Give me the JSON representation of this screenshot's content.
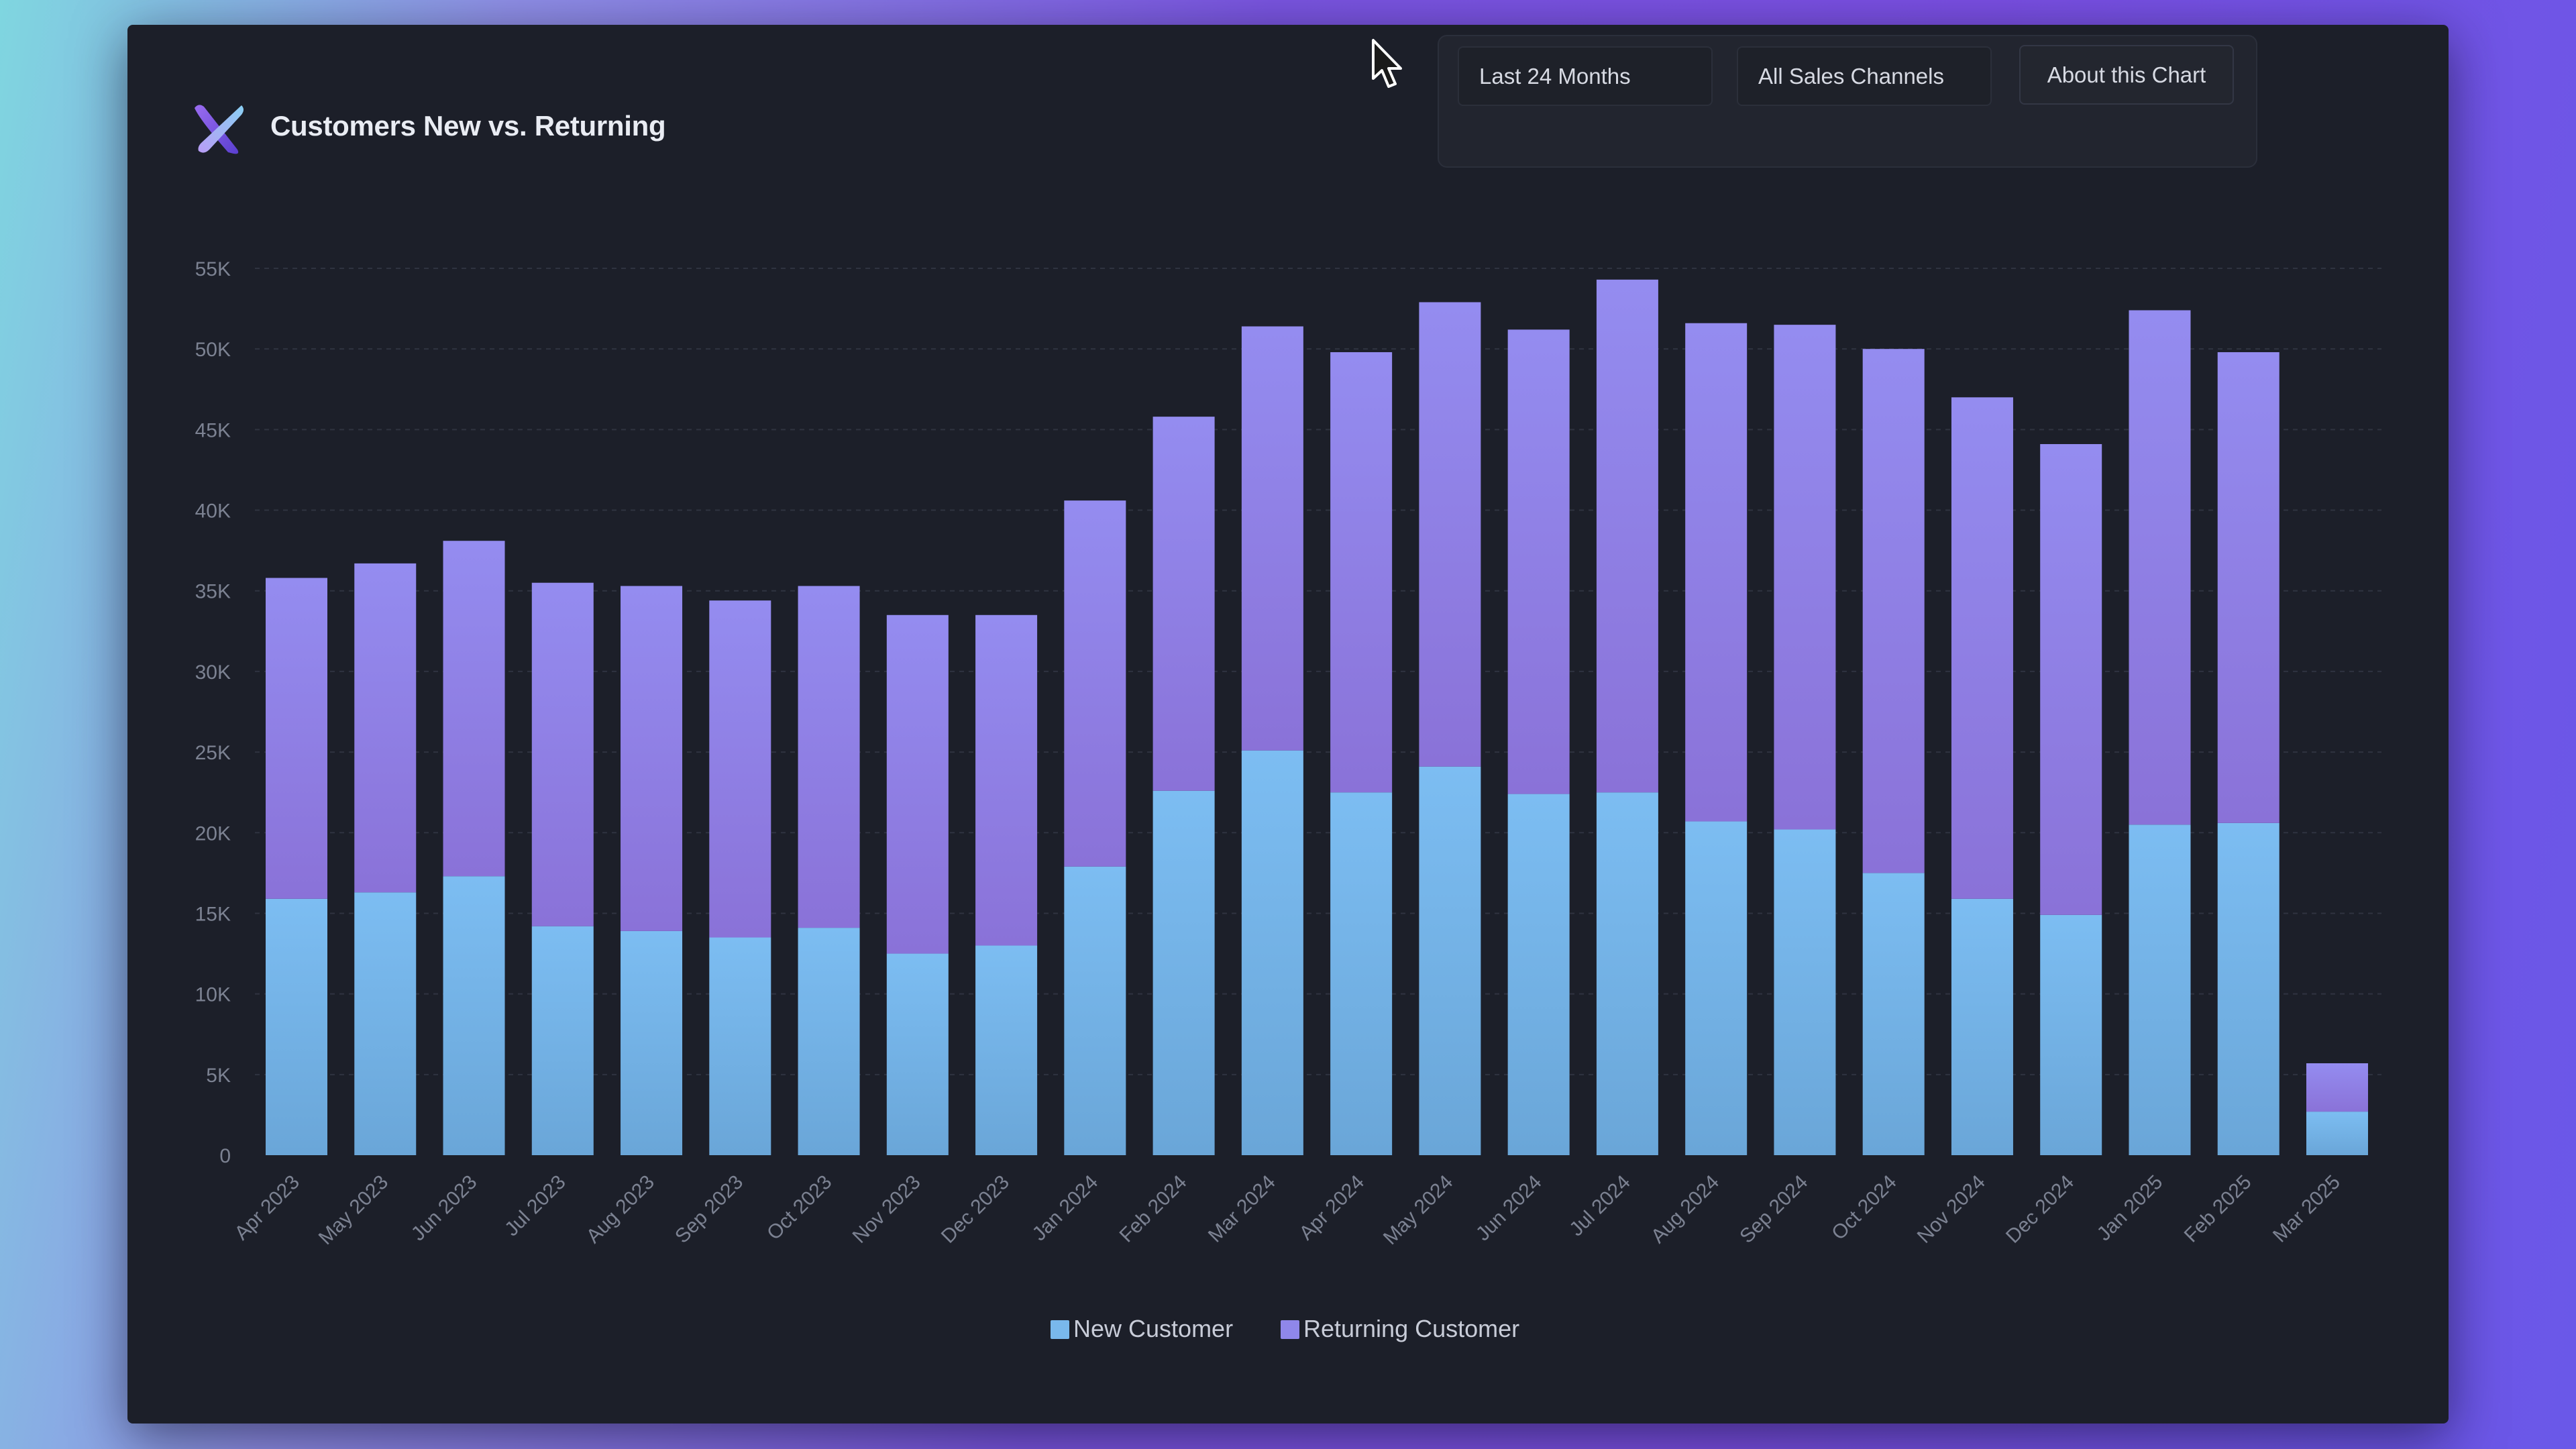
{
  "header": {
    "title": "Customers New vs. Returning",
    "logo_icon": "x-logo-icon"
  },
  "controls": {
    "range_label": "Last 24 Months",
    "channel_label": "All Sales Channels",
    "about_label": "About this Chart"
  },
  "colors": {
    "window_bg": "#1c1f29",
    "new_customer": "#79b8ec",
    "returning_customer": "#8f87ea",
    "grid": "#2f3340",
    "tick_text": "#7c8292"
  },
  "chart_data": {
    "type": "bar",
    "stacked": true,
    "title": "Customers New vs. Returning",
    "xlabel": "",
    "ylabel": "",
    "ylim": [
      0,
      55000
    ],
    "yticks": [
      0,
      5000,
      10000,
      15000,
      20000,
      25000,
      30000,
      35000,
      40000,
      45000,
      50000,
      55000
    ],
    "ytick_labels": [
      "0",
      "5K",
      "10K",
      "15K",
      "20K",
      "25K",
      "30K",
      "35K",
      "40K",
      "45K",
      "50K",
      "55K"
    ],
    "grid": true,
    "legend_position": "bottom",
    "categories": [
      "Apr 2023",
      "May 2023",
      "Jun 2023",
      "Jul 2023",
      "Aug 2023",
      "Sep 2023",
      "Oct 2023",
      "Nov 2023",
      "Dec 2023",
      "Jan 2024",
      "Feb 2024",
      "Mar 2024",
      "Apr 2024",
      "May 2024",
      "Jun 2024",
      "Jul 2024",
      "Aug 2024",
      "Sep 2024",
      "Oct 2024",
      "Nov 2024",
      "Dec 2024",
      "Jan 2025",
      "Feb 2025",
      "Mar 2025"
    ],
    "series": [
      {
        "name": "New Customer",
        "color": "#79b8ec",
        "values": [
          15900,
          16300,
          17300,
          14200,
          13900,
          13500,
          14100,
          12500,
          13000,
          17900,
          22600,
          25100,
          22500,
          24100,
          22400,
          22500,
          20700,
          20200,
          17500,
          15900,
          14900,
          20500,
          20600,
          2700
        ]
      },
      {
        "name": "Returning Customer",
        "color": "#8f87ea",
        "values": [
          19900,
          20400,
          20800,
          21300,
          21400,
          20900,
          21200,
          21000,
          20500,
          22700,
          23200,
          26300,
          27300,
          28800,
          28800,
          31800,
          30900,
          31300,
          32500,
          31100,
          29200,
          31900,
          29200,
          3000
        ]
      }
    ]
  }
}
